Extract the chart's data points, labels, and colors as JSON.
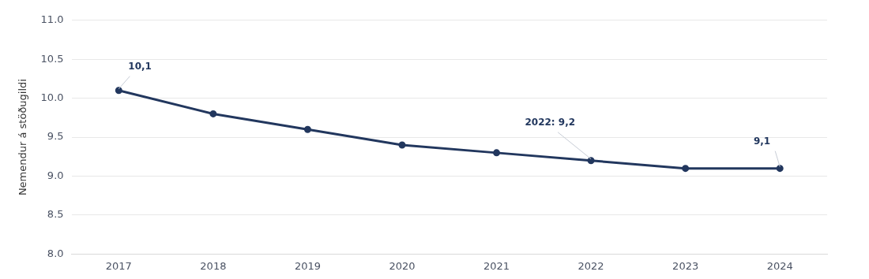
{
  "chart_data": {
    "type": "line",
    "ylabel": "Nemendur á stöðugildi",
    "categories": [
      "2017",
      "2018",
      "2019",
      "2020",
      "2021",
      "2022",
      "2023",
      "2024"
    ],
    "series": [
      {
        "color": "#22375e",
        "values": [
          10.1,
          9.8,
          9.6,
          9.4,
          9.3,
          9.2,
          9.1,
          9.1
        ]
      }
    ],
    "ylim": [
      8,
      11
    ],
    "yticks": [
      {
        "value": 8,
        "label": "8.0"
      },
      {
        "value": 8.5,
        "label": "8.5"
      },
      {
        "value": 9,
        "label": "9.0"
      },
      {
        "value": 9.5,
        "label": "9.5"
      },
      {
        "value": 10,
        "label": "10.0"
      },
      {
        "value": 10.5,
        "label": "10.5"
      },
      {
        "value": 11,
        "label": "11.0"
      }
    ],
    "grid": "y",
    "legend": false,
    "marker": "circle",
    "line_style": "solid",
    "annotations": [
      {
        "text": "10,1",
        "x": "2017",
        "y": 10.1
      },
      {
        "text": "2022: 9,2",
        "x": "2022",
        "y": 9.2
      },
      {
        "text": "9,1",
        "x": "2024",
        "y": 9.1
      }
    ]
  }
}
